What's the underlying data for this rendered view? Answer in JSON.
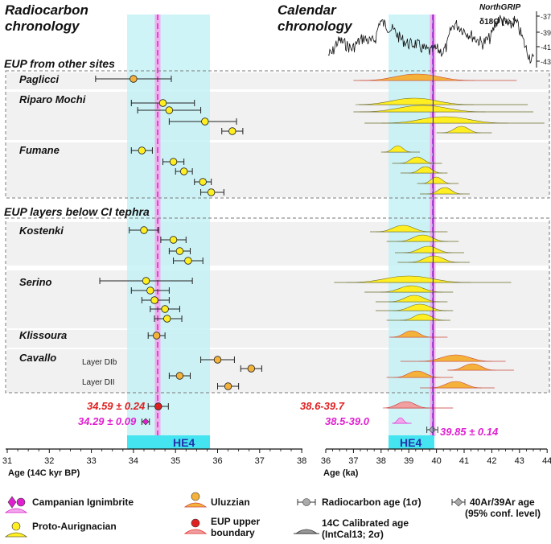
{
  "titles": {
    "left": [
      "Radiocarbon",
      "chronology"
    ],
    "right": [
      "Calendar",
      "chronology"
    ]
  },
  "ngrip": {
    "title": "NorthGRIP",
    "ylabel": "δ18O (‰)",
    "ticks": [
      "-37",
      "-39",
      "-41",
      "-43"
    ]
  },
  "sections": {
    "other": "EUP from other sites",
    "below": "EUP layers below CI tephra"
  },
  "he4_label": "HE4",
  "highlights": {
    "eup_left": "34.59 ± 0.24",
    "ci_left": "34.29 ± 0.09",
    "eup_right": "38.6-39.7",
    "ci_right": "38.5-39.0",
    "ar_right": "39.85 ± 0.14"
  },
  "colors": {
    "uluzzian": "#f5b23a",
    "proto_aurignacian": "#ffee22",
    "eup_boundary": "#e02020",
    "ci": "#e020d0",
    "he4_band": "#bff0f5",
    "he4_box": "#44e4f0",
    "ar_line": "#3333cc"
  },
  "legend": [
    {
      "key": "ci",
      "label": "Campanian Ignimbrite"
    },
    {
      "key": "uluzzian",
      "label": "Uluzzian"
    },
    {
      "key": "radiocarbon",
      "label": "Radiocarbon age (1σ)"
    },
    {
      "key": "ar",
      "label": "40Ar/39Ar age",
      "label2": "(95% conf. level)"
    },
    {
      "key": "proto",
      "label": "Proto-Aurignacian"
    },
    {
      "key": "eup",
      "label": "EUP upper",
      "label2": "boundary"
    },
    {
      "key": "calib",
      "label": "14C Calibrated age",
      "label2": "(IntCal13; 2σ)"
    }
  ],
  "chart_data": [
    {
      "type": "scatter",
      "title": "Radiocarbon chronology",
      "xlabel": "Age (14C kyr BP)",
      "xlim": [
        31,
        38
      ],
      "ticks": [
        "31",
        "32",
        "33",
        "34",
        "35",
        "36",
        "37",
        "38"
      ],
      "he4_range": [
        33.6,
        35.4
      ],
      "ci_value": 34.29,
      "rows": [
        {
          "site": "Paglicci",
          "culture": "Uluzzian",
          "value": 34.0,
          "err": [
            33.1,
            34.9
          ]
        },
        {
          "site": "Riparo Mochi",
          "culture": "Proto-Aurignacian",
          "value": 34.7,
          "err": [
            33.95,
            35.45
          ]
        },
        {
          "site": "Riparo Mochi",
          "culture": "Proto-Aurignacian",
          "value": 34.85,
          "err": [
            34.1,
            35.6
          ]
        },
        {
          "site": "Riparo Mochi",
          "culture": "Proto-Aurignacian",
          "value": 35.7,
          "err": [
            34.85,
            36.45
          ]
        },
        {
          "site": "Riparo Mochi",
          "culture": "Proto-Aurignacian",
          "value": 36.35,
          "err": [
            36.1,
            36.6
          ]
        },
        {
          "site": "Fumane",
          "culture": "Proto-Aurignacian",
          "value": 34.2,
          "err": [
            33.95,
            34.45
          ]
        },
        {
          "site": "Fumane",
          "culture": "Proto-Aurignacian",
          "value": 34.95,
          "err": [
            34.7,
            35.2
          ]
        },
        {
          "site": "Fumane",
          "culture": "Proto-Aurignacian",
          "value": 35.2,
          "err": [
            35.0,
            35.4
          ]
        },
        {
          "site": "Fumane",
          "culture": "Proto-Aurignacian",
          "value": 35.65,
          "err": [
            35.45,
            35.85
          ]
        },
        {
          "site": "Fumane",
          "culture": "Proto-Aurignacian",
          "value": 35.85,
          "err": [
            35.6,
            36.15
          ]
        },
        {
          "site": "Kostenki",
          "culture": "Proto-Aurignacian",
          "value": 34.25,
          "err": [
            33.9,
            34.6
          ]
        },
        {
          "site": "Kostenki",
          "culture": "Proto-Aurignacian",
          "value": 34.95,
          "err": [
            34.65,
            35.25
          ]
        },
        {
          "site": "Kostenki",
          "culture": "Proto-Aurignacian",
          "value": 35.1,
          "err": [
            34.85,
            35.35
          ]
        },
        {
          "site": "Kostenki",
          "culture": "Proto-Aurignacian",
          "value": 35.3,
          "err": [
            34.95,
            35.65
          ]
        },
        {
          "site": "Serino",
          "culture": "Proto-Aurignacian",
          "value": 34.3,
          "err": [
            33.2,
            35.4
          ]
        },
        {
          "site": "Serino",
          "culture": "Proto-Aurignacian",
          "value": 34.4,
          "err": [
            33.95,
            34.85
          ]
        },
        {
          "site": "Serino",
          "culture": "Proto-Aurignacian",
          "value": 34.5,
          "err": [
            34.2,
            34.85
          ]
        },
        {
          "site": "Serino",
          "culture": "Proto-Aurignacian",
          "value": 34.75,
          "err": [
            34.4,
            35.1
          ]
        },
        {
          "site": "Serino",
          "culture": "Proto-Aurignacian",
          "value": 34.8,
          "err": [
            34.5,
            35.15
          ]
        },
        {
          "site": "Klissoura",
          "culture": "Uluzzian",
          "value": 34.55,
          "err": [
            34.35,
            34.75
          ]
        },
        {
          "site": "Cavallo",
          "layer": "Layer DIb",
          "culture": "Uluzzian",
          "value": 36.0,
          "err": [
            35.6,
            36.4
          ]
        },
        {
          "site": "Cavallo",
          "layer": "Layer DIb",
          "culture": "Uluzzian",
          "value": 36.8,
          "err": [
            36.55,
            37.05
          ]
        },
        {
          "site": "Cavallo",
          "layer": "Layer DII",
          "culture": "Uluzzian",
          "value": 35.1,
          "err": [
            34.85,
            35.35
          ]
        },
        {
          "site": "Cavallo",
          "layer": "Layer DII",
          "culture": "Uluzzian",
          "value": 36.25,
          "err": [
            36.0,
            36.5
          ]
        },
        {
          "site": "EUP upper boundary",
          "culture": "EUP upper boundary",
          "value": 34.59,
          "err": [
            34.35,
            34.83
          ]
        },
        {
          "site": "Campanian Ignimbrite",
          "culture": "Campanian Ignimbrite",
          "value": 34.29,
          "err": [
            34.2,
            34.38
          ]
        }
      ]
    },
    {
      "type": "area",
      "title": "Calendar chronology",
      "xlabel": "Age (ka)",
      "xlim": [
        36,
        44
      ],
      "ticks": [
        "36",
        "37",
        "38",
        "39",
        "40",
        "41",
        "42",
        "43",
        "44"
      ],
      "he4_range": [
        38.3,
        40.0
      ],
      "ci_ar_age": 39.85,
      "ci_ar_err": 0.14,
      "rows": [
        {
          "site": "Paglicci",
          "culture": "Uluzzian",
          "range": [
            37.0,
            42.9
          ],
          "peak": 39.3
        },
        {
          "site": "Riparo Mochi",
          "culture": "Proto-Aurignacian",
          "range": [
            37.2,
            43.3
          ],
          "peak": 39.2
        },
        {
          "site": "Riparo Mochi",
          "culture": "Proto-Aurignacian",
          "range": [
            37.0,
            43.5
          ],
          "peak": 39.5
        },
        {
          "site": "Riparo Mochi",
          "culture": "Proto-Aurignacian",
          "range": [
            37.4,
            43.9
          ],
          "peak": 40.3
        },
        {
          "site": "Riparo Mochi",
          "culture": "Proto-Aurignacian",
          "range": [
            40.0,
            42.0
          ],
          "peak": 40.9
        },
        {
          "site": "Fumane",
          "culture": "Proto-Aurignacian",
          "range": [
            38.0,
            39.4
          ],
          "peak": 38.6
        },
        {
          "site": "Fumane",
          "culture": "Proto-Aurignacian",
          "range": [
            38.4,
            40.2
          ],
          "peak": 39.3
        },
        {
          "site": "Fumane",
          "culture": "Proto-Aurignacian",
          "range": [
            38.7,
            40.4
          ],
          "peak": 39.6
        },
        {
          "site": "Fumane",
          "culture": "Proto-Aurignacian",
          "range": [
            39.3,
            40.8
          ],
          "peak": 40.0
        },
        {
          "site": "Fumane",
          "culture": "Proto-Aurignacian",
          "range": [
            39.4,
            41.2
          ],
          "peak": 40.3
        },
        {
          "site": "Kostenki",
          "culture": "Proto-Aurignacian",
          "range": [
            37.6,
            40.4
          ],
          "peak": 38.8
        },
        {
          "site": "Kostenki",
          "culture": "Proto-Aurignacian",
          "range": [
            38.2,
            40.8
          ],
          "peak": 39.5
        },
        {
          "site": "Kostenki",
          "culture": "Proto-Aurignacian",
          "range": [
            38.5,
            41.0
          ],
          "peak": 39.7
        },
        {
          "site": "Kostenki",
          "culture": "Proto-Aurignacian",
          "range": [
            38.6,
            41.2
          ],
          "peak": 39.9
        },
        {
          "site": "Serino",
          "culture": "Proto-Aurignacian",
          "range": [
            36.3,
            42.7
          ],
          "peak": 39.0
        },
        {
          "site": "Serino",
          "culture": "Proto-Aurignacian",
          "range": [
            37.4,
            40.6
          ],
          "peak": 39.1
        },
        {
          "site": "Serino",
          "culture": "Proto-Aurignacian",
          "range": [
            37.8,
            40.4
          ],
          "peak": 39.2
        },
        {
          "site": "Serino",
          "culture": "Proto-Aurignacian",
          "range": [
            37.8,
            40.6
          ],
          "peak": 39.4
        },
        {
          "site": "Serino",
          "culture": "Proto-Aurignacian",
          "range": [
            38.2,
            40.5
          ],
          "peak": 39.5
        },
        {
          "site": "Klissoura",
          "culture": "Uluzzian",
          "range": [
            38.3,
            40.4
          ],
          "peak": 39.1
        },
        {
          "site": "Cavallo",
          "layer": "Layer DIb",
          "culture": "Uluzzian",
          "range": [
            38.7,
            42.5
          ],
          "peak": 40.7
        },
        {
          "site": "Cavallo",
          "layer": "Layer DIb",
          "culture": "Uluzzian",
          "range": [
            40.4,
            42.8
          ],
          "peak": 41.3
        },
        {
          "site": "Cavallo",
          "layer": "Layer DII",
          "culture": "Uluzzian",
          "range": [
            38.2,
            40.6
          ],
          "peak": 39.3
        },
        {
          "site": "Cavallo",
          "layer": "Layer DII",
          "culture": "Uluzzian",
          "range": [
            39.4,
            42.1
          ],
          "peak": 40.7
        },
        {
          "site": "EUP upper boundary",
          "culture": "EUP upper boundary",
          "range": [
            38.2,
            40.6
          ],
          "peak": 38.9
        },
        {
          "site": "Campanian Ignimbrite",
          "culture": "Campanian Ignimbrite",
          "range": [
            38.4,
            39.1
          ],
          "peak": 38.7
        }
      ]
    }
  ]
}
